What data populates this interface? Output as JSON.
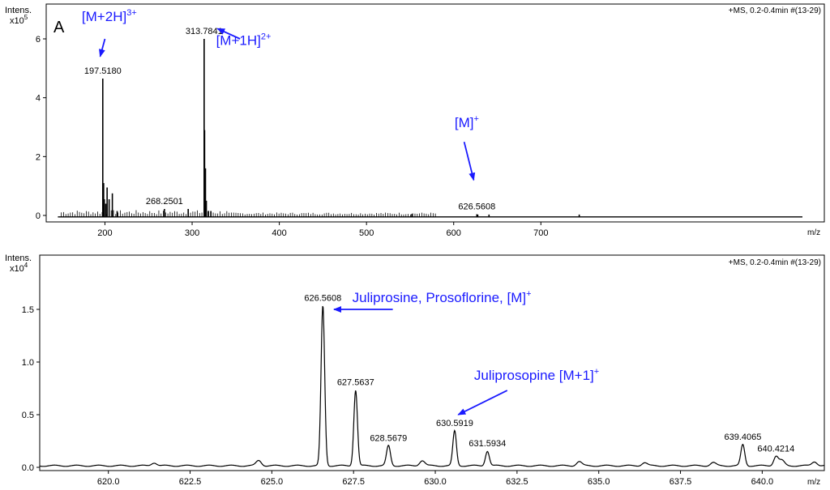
{
  "chart_data": [
    {
      "type": "line",
      "panel_letter": "A",
      "y_axis_label": "Intens.",
      "y_scale_label": "x10",
      "y_scale_exp": "5",
      "x_axis_label": "m/z",
      "header": "+MS, 0.2-0.4min #(13-29)",
      "xlim": [
        141,
        1000
      ],
      "ylim": [
        0,
        6.5
      ],
      "x_ticks": [
        200,
        300,
        400,
        500,
        600,
        700
      ],
      "x_tick_labels": [
        "200",
        "300",
        "400",
        "500",
        "600",
        "700"
      ],
      "y_ticks": [
        0,
        2,
        4,
        6
      ],
      "y_tick_labels": [
        "0",
        "2",
        "4",
        "6"
      ],
      "peaks": [
        {
          "x": 197.518,
          "y": 4.65
        },
        {
          "x": 198.5,
          "y": 1.1
        },
        {
          "x": 199.3,
          "y": 0.55
        },
        {
          "x": 201.0,
          "y": 0.4
        },
        {
          "x": 202.5,
          "y": 0.95
        },
        {
          "x": 204.8,
          "y": 0.55
        },
        {
          "x": 208.5,
          "y": 0.75
        },
        {
          "x": 214.0,
          "y": 0.15
        },
        {
          "x": 268.2501,
          "y": 0.22
        },
        {
          "x": 295.5,
          "y": 0.22
        },
        {
          "x": 313.7841,
          "y": 6.0
        },
        {
          "x": 314.3,
          "y": 2.9
        },
        {
          "x": 315.3,
          "y": 1.6
        },
        {
          "x": 316.3,
          "y": 0.5
        },
        {
          "x": 318.5,
          "y": 0.15
        },
        {
          "x": 321.5,
          "y": 0.15
        },
        {
          "x": 552.0,
          "y": 0.05
        },
        {
          "x": 626.5608,
          "y": 0.04
        },
        {
          "x": 627.6,
          "y": 0.03
        },
        {
          "x": 640.5,
          "y": 0.03
        },
        {
          "x": 744.0,
          "y": 0.03
        }
      ],
      "peak_labels": [
        {
          "x": 197.518,
          "y": 4.65,
          "text": "197.5180"
        },
        {
          "x": 313.7841,
          "y": 6.0,
          "text": "313.7841"
        },
        {
          "x": 268.2501,
          "y": 0.22,
          "text": "268.2501"
        },
        {
          "x": 626.5608,
          "y": 0.04,
          "text": "626.5608"
        }
      ],
      "annotations": [
        {
          "base": "[M+2H]",
          "sup": "3+",
          "x": 205,
          "y": 6.6,
          "arrow_from": [
            200,
            6.0
          ],
          "arrow_to": [
            194.5,
            5.4
          ]
        },
        {
          "base": "[M+1H]",
          "sup": "2+",
          "x": 359,
          "y": 5.8,
          "arrow_from": [
            355,
            6.0
          ],
          "arrow_to": [
            329,
            6.35
          ]
        },
        {
          "base": "[M]",
          "sup": "+",
          "x": 615,
          "y": 3.0,
          "arrow_from": [
            612,
            2.5
          ],
          "arrow_to": [
            623,
            1.2
          ]
        }
      ]
    },
    {
      "type": "line",
      "y_axis_label": "Intens.",
      "y_scale_label": "x10",
      "y_scale_exp": "4",
      "x_axis_label": "m/z",
      "header": "+MS, 0.2-0.4min #(13-29)",
      "xlim": [
        617.9,
        641.9
      ],
      "ylim": [
        -0.05,
        1.85
      ],
      "x_ticks": [
        620.0,
        622.5,
        625.0,
        627.5,
        630.0,
        632.5,
        635.0,
        637.5,
        640.0
      ],
      "x_tick_labels": [
        "620.0",
        "622.5",
        "625.0",
        "627.5",
        "630.0",
        "632.5",
        "635.0",
        "637.5",
        "640.0"
      ],
      "y_ticks": [
        0,
        0.5,
        1.0,
        1.5
      ],
      "y_tick_labels": [
        "0.0",
        "0.5",
        "1.0",
        "1.5"
      ],
      "baseline": 0.015,
      "peaks": [
        {
          "x": 626.5608,
          "y": 1.52,
          "w": 0.055
        },
        {
          "x": 627.5637,
          "y": 0.72,
          "w": 0.055
        },
        {
          "x": 628.5679,
          "y": 0.19,
          "w": 0.06
        },
        {
          "x": 630.5919,
          "y": 0.33,
          "w": 0.055
        },
        {
          "x": 631.5934,
          "y": 0.14,
          "w": 0.06
        },
        {
          "x": 639.4065,
          "y": 0.2,
          "w": 0.06
        },
        {
          "x": 640.4214,
          "y": 0.09,
          "w": 0.07
        },
        {
          "x": 640.6,
          "y": 0.05,
          "w": 0.08
        },
        {
          "x": 629.6,
          "y": 0.05,
          "w": 0.08
        },
        {
          "x": 624.6,
          "y": 0.05,
          "w": 0.08
        },
        {
          "x": 621.4,
          "y": 0.03,
          "w": 0.08
        },
        {
          "x": 634.4,
          "y": 0.04,
          "w": 0.08
        },
        {
          "x": 636.4,
          "y": 0.03,
          "w": 0.08
        },
        {
          "x": 638.5,
          "y": 0.03,
          "w": 0.08
        },
        {
          "x": 641.6,
          "y": 0.04,
          "w": 0.08
        }
      ],
      "peak_labels": [
        {
          "x": 626.5608,
          "y": 1.52,
          "text": "626.5608"
        },
        {
          "x": 627.5637,
          "y": 0.72,
          "text": "627.5637"
        },
        {
          "x": 628.5679,
          "y": 0.19,
          "text": "628.5679"
        },
        {
          "x": 630.5919,
          "y": 0.33,
          "text": "630.5919"
        },
        {
          "x": 631.5934,
          "y": 0.14,
          "text": "631.5934"
        },
        {
          "x": 639.4065,
          "y": 0.2,
          "text": "639.4065"
        },
        {
          "x": 640.4214,
          "y": 0.09,
          "text": "640.4214"
        }
      ],
      "annotations": [
        {
          "base": "Juliprosine, Prosoflorine, [M]",
          "sup": "+",
          "x": 630.2,
          "y": 1.57,
          "arrow_from": [
            628.7,
            1.5
          ],
          "arrow_to": [
            626.9,
            1.5
          ]
        },
        {
          "base": "Juliprosopine [M+1]",
          "sup": "+",
          "x": 633.1,
          "y": 0.83,
          "arrow_from": [
            632.2,
            0.73
          ],
          "arrow_to": [
            630.7,
            0.5
          ]
        }
      ]
    }
  ]
}
